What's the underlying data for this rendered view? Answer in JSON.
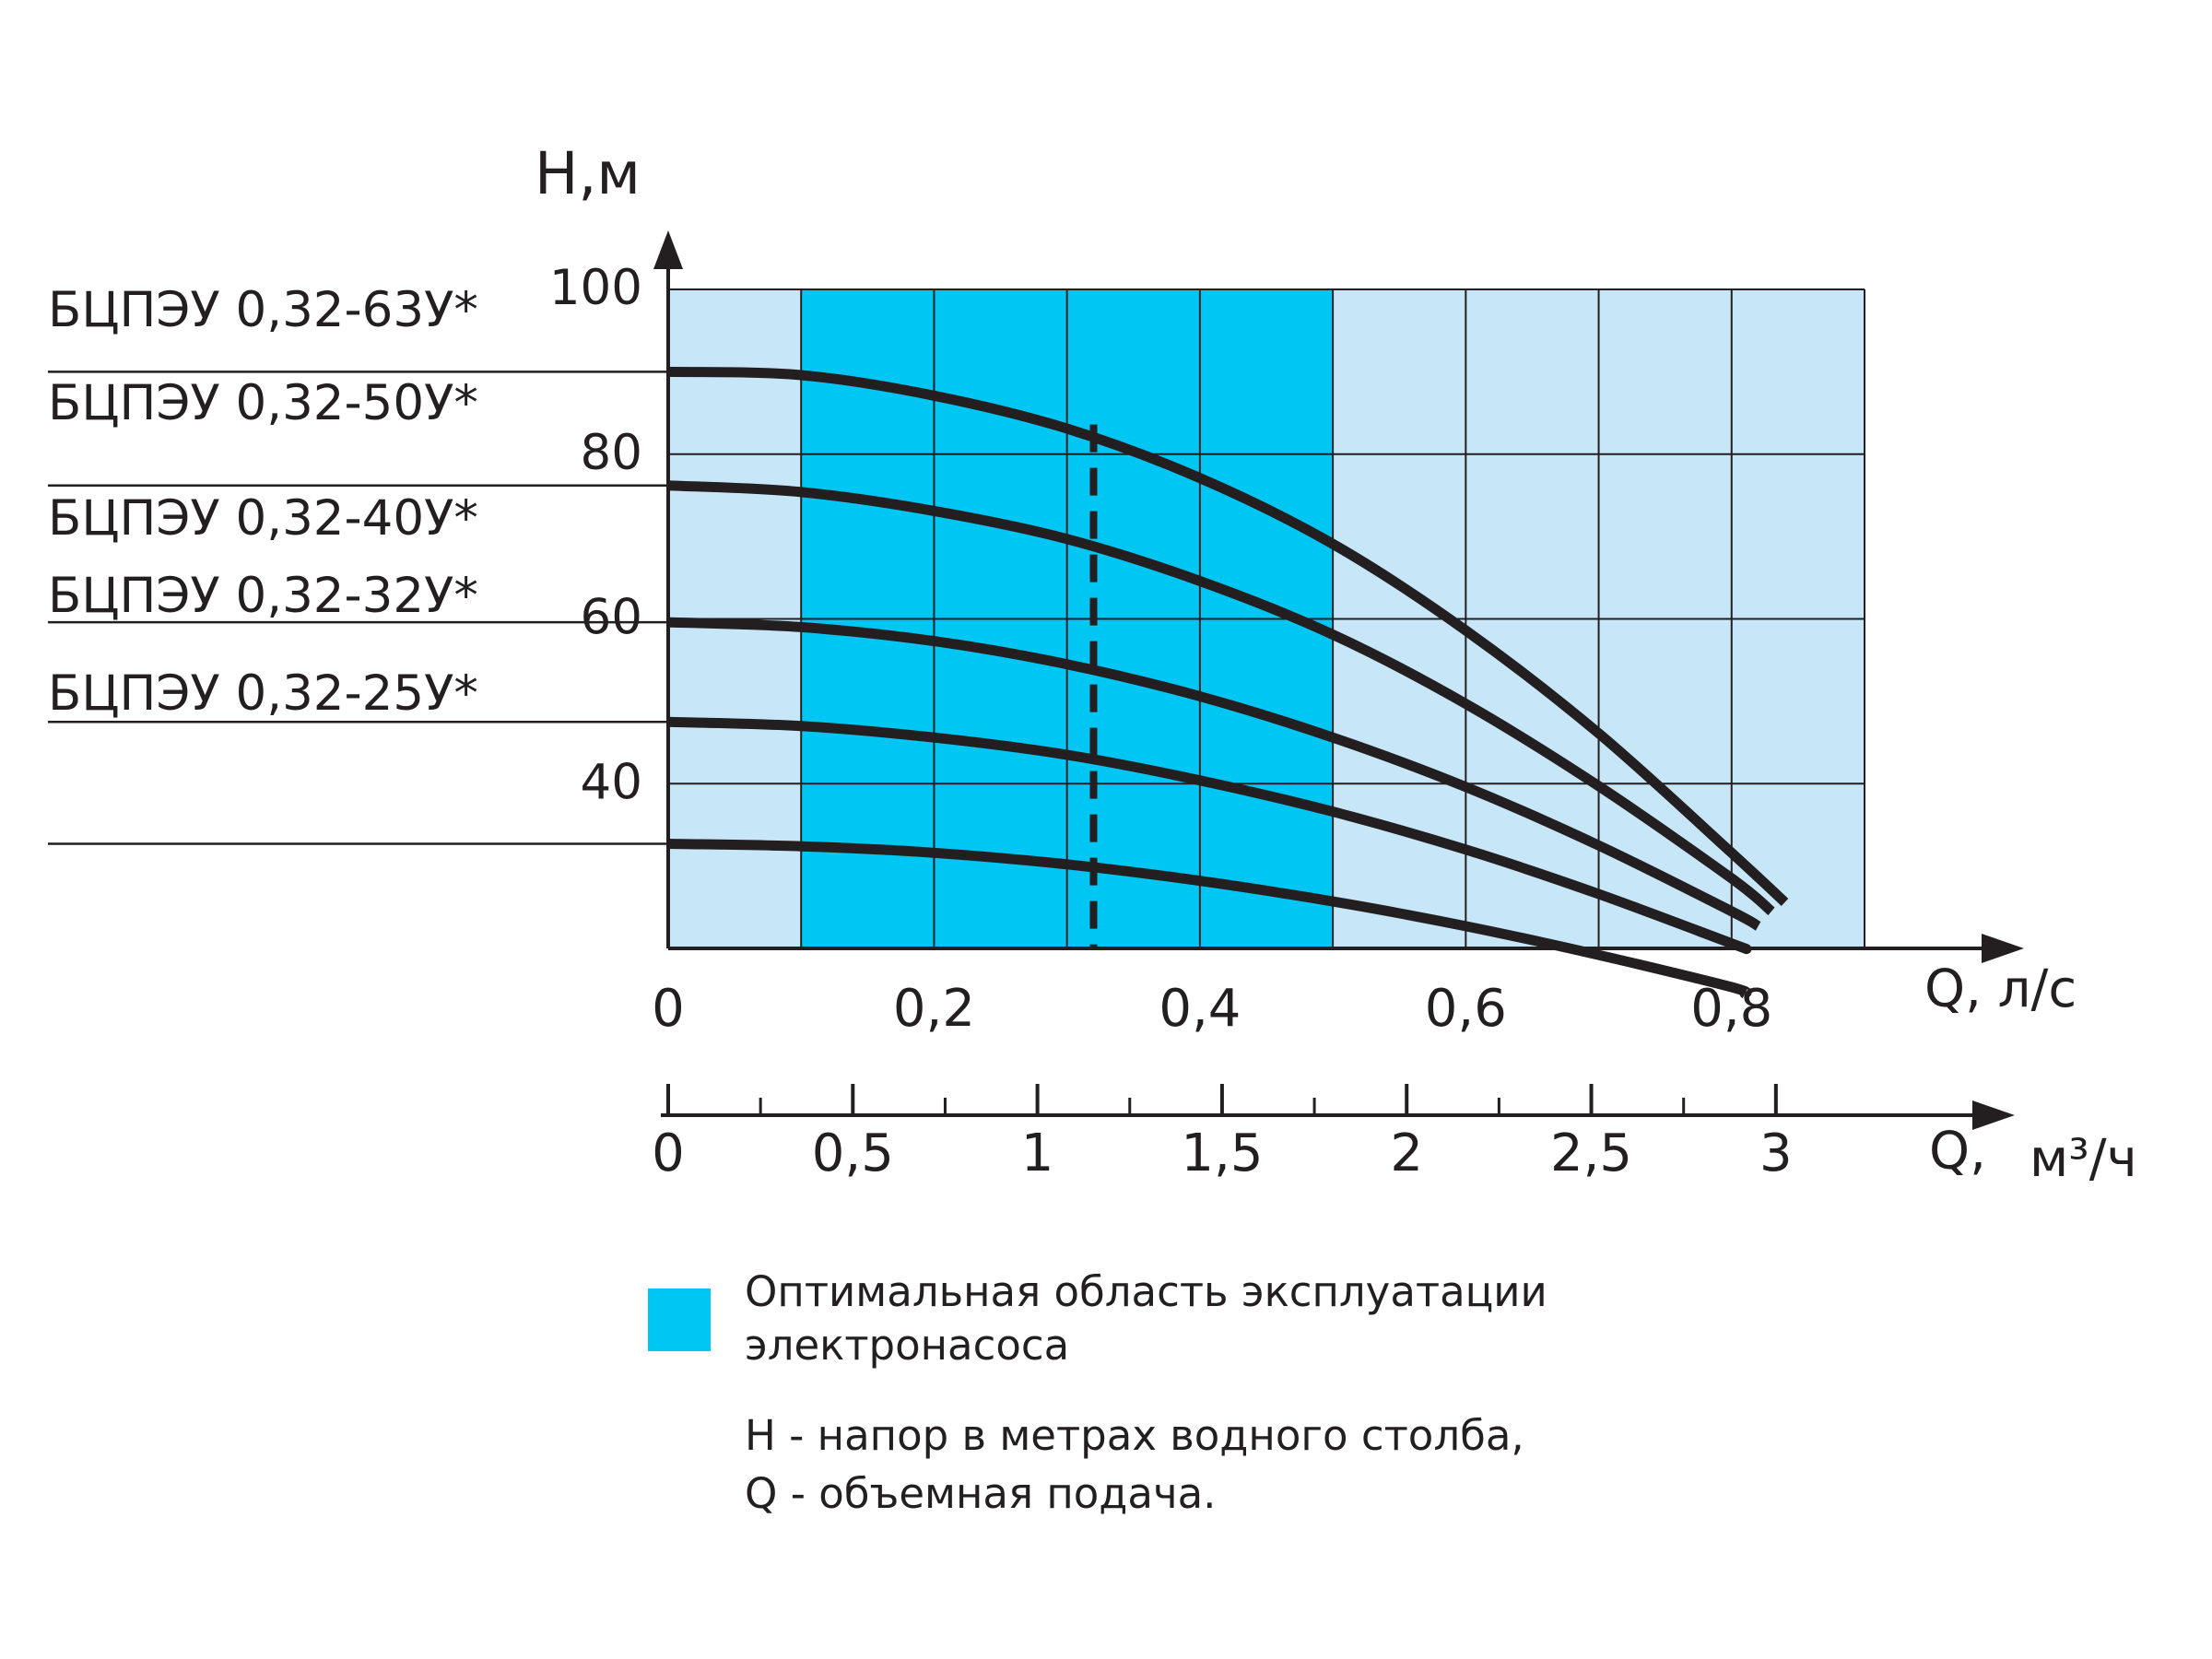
{
  "colors": {
    "background_region": "#c7e7f9",
    "optimal_region": "#00c6f3",
    "grid": "#231f20",
    "curves": "#231f20"
  },
  "chart_data": {
    "type": "line",
    "y_axis": {
      "label": "H,м",
      "ticks": [
        40,
        60,
        80,
        100
      ],
      "range": [
        20,
        100
      ]
    },
    "x_axis_primary": {
      "unit_label": "Q, л/с",
      "ticks": [
        "0",
        "0,2",
        "0,4",
        "0,6",
        "0,8"
      ],
      "range": [
        0,
        0.9
      ]
    },
    "x_axis_secondary": {
      "unit_prefix": "Q,",
      "unit": "м³/ч",
      "ticks": [
        "0",
        "0,5",
        "1",
        "1,5",
        "2",
        "2,5",
        "3"
      ]
    },
    "optimal_region_x": [
      0.1,
      0.5
    ],
    "nominal_flow_x": 0.32,
    "grid": true,
    "series": [
      {
        "name": "БЦПЭУ 0,32-63У*",
        "x": [
          0.0,
          0.1,
          0.2,
          0.3,
          0.4,
          0.5,
          0.6,
          0.7,
          0.8,
          0.84
        ],
        "y": [
          90.0,
          89.6,
          87.1,
          83.1,
          77.1,
          69.1,
          58.6,
          46.1,
          31.6,
          25.6
        ]
      },
      {
        "name": "БЦПЭУ 0,32-50У*",
        "x": [
          0.0,
          0.1,
          0.2,
          0.3,
          0.4,
          0.5,
          0.6,
          0.7,
          0.8,
          0.83
        ],
        "y": [
          76.2,
          75.4,
          73.1,
          69.7,
          64.6,
          58.1,
          49.7,
          39.7,
          28.5,
          24.5
        ]
      },
      {
        "name": "БЦПЭУ 0,32-40У*",
        "x": [
          0.0,
          0.1,
          0.2,
          0.3,
          0.4,
          0.5,
          0.6,
          0.7,
          0.8,
          0.82
        ],
        "y": [
          59.6,
          59.0,
          57.3,
          54.5,
          50.6,
          45.6,
          39.6,
          32.5,
          24.5,
          22.7
        ]
      },
      {
        "name": "БЦПЭУ 0,32-32У*",
        "x": [
          0.0,
          0.1,
          0.2,
          0.3,
          0.4,
          0.5,
          0.6,
          0.7,
          0.8,
          0.81
        ],
        "y": [
          47.5,
          47.0,
          45.6,
          43.5,
          40.4,
          36.6,
          32.0,
          26.6,
          20.6,
          20.0
        ]
      },
      {
        "name": "БЦПЭУ 0,32-25У*",
        "x": [
          0.0,
          0.1,
          0.2,
          0.3,
          0.4,
          0.5,
          0.6,
          0.7,
          0.8,
          0.81
        ],
        "y": [
          32.7,
          32.4,
          31.6,
          30.2,
          28.2,
          25.7,
          22.7,
          19.2,
          15.3,
          14.5
        ]
      }
    ]
  },
  "legend": {
    "optimal_line1": "Оптимальная область эксплуатации",
    "optimal_line2": "электронасоса",
    "note_line1": "Н - напор в метрах водного столба,",
    "note_line2": "Q - объемная подача."
  }
}
